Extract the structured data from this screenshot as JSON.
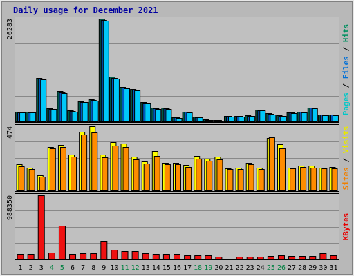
{
  "chart_data": {
    "type": "bar",
    "title": "Daily usage for December 2021",
    "days": [
      "1",
      "2",
      "3",
      "4",
      "5",
      "6",
      "7",
      "8",
      "9",
      "10",
      "11",
      "12",
      "13",
      "14",
      "15",
      "16",
      "17",
      "18",
      "19",
      "20",
      "21",
      "22",
      "23",
      "24",
      "25",
      "26",
      "27",
      "28",
      "29",
      "30",
      "31"
    ],
    "weekend_days": [
      "4",
      "5",
      "11",
      "12",
      "18",
      "19",
      "25",
      "26"
    ],
    "panels": [
      {
        "id": "top",
        "max_label": "26283",
        "ymax": 26283,
        "right_label": [
          "Pages",
          "Files",
          "Hits"
        ],
        "right_colors": [
          "#00c8c8",
          "#0070d8",
          "#009060"
        ],
        "series": [
          {
            "name": "Hits",
            "color": "#005848",
            "values": [
              2600,
              2600,
              11300,
              3500,
              7800,
              2900,
              5300,
              5800,
              26283,
              11600,
              9000,
              8400,
              5000,
              3600,
              3600,
              1300,
              2700,
              1400,
              700,
              600,
              1600,
              1600,
              1700,
              3100,
              2200,
              1700,
              2500,
              2700,
              3700,
              2000,
              2000
            ]
          },
          {
            "name": "Files",
            "color": "#0058c0",
            "values": [
              2500,
              2500,
              11100,
              3400,
              7600,
              2800,
              5100,
              5600,
              25900,
              11300,
              8800,
              8200,
              4800,
              3500,
              3500,
              1200,
              2600,
              1300,
              600,
              500,
              1500,
              1500,
              1600,
              3000,
              2100,
              1600,
              2400,
              2600,
              3600,
              1900,
              1900
            ]
          },
          {
            "name": "Pages",
            "color": "#00c8f8",
            "values": [
              2400,
              2400,
              10900,
              3300,
              7400,
              2700,
              5000,
              5500,
              25700,
              11100,
              8600,
              8000,
              4700,
              3400,
              3400,
              1100,
              2500,
              1200,
              500,
              400,
              1400,
              1400,
              1500,
              2900,
              2000,
              1500,
              2300,
              2500,
              3500,
              1800,
              1800
            ]
          }
        ]
      },
      {
        "id": "middle",
        "max_label": "474",
        "ymax": 474,
        "right_label": [
          "Sites",
          "Visits"
        ],
        "right_colors": [
          "#f08000",
          "#e8e800"
        ],
        "series": [
          {
            "name": "Visits",
            "color": "#ffff00",
            "values": [
              195,
              170,
              118,
              325,
              338,
              265,
              432,
              474,
              265,
              357,
              350,
              250,
              218,
              294,
              207,
              206,
              190,
              258,
              237,
              254,
              168,
              169,
              205,
              172,
              388,
              345,
              173,
              188,
              189,
              173,
              175
            ]
          },
          {
            "name": "Sites",
            "color": "#ff8c00",
            "values": [
              182,
              163,
              108,
              313,
              325,
              252,
              415,
              430,
              248,
              332,
              325,
              233,
              202,
              258,
              198,
              198,
              178,
              238,
              222,
              231,
              160,
              162,
              195,
              162,
              395,
              313,
              168,
              176,
              173,
              164,
              165
            ]
          }
        ]
      },
      {
        "id": "bottom",
        "max_label": "988350",
        "ymax": 988350,
        "right_label": [
          "KBytes"
        ],
        "right_colors": [
          "#e80000"
        ],
        "series": [
          {
            "name": "KBytes",
            "color": "#ee1111",
            "values": [
              80000,
              80000,
              988350,
              105000,
              520000,
              90000,
              95000,
              95000,
              290000,
              150000,
              125000,
              125000,
              95000,
              80000,
              80000,
              80000,
              65000,
              65000,
              65000,
              42000,
              10000,
              40000,
              40000,
              40000,
              56000,
              60000,
              50000,
              50000,
              56000,
              98000,
              60000
            ]
          }
        ]
      }
    ]
  }
}
